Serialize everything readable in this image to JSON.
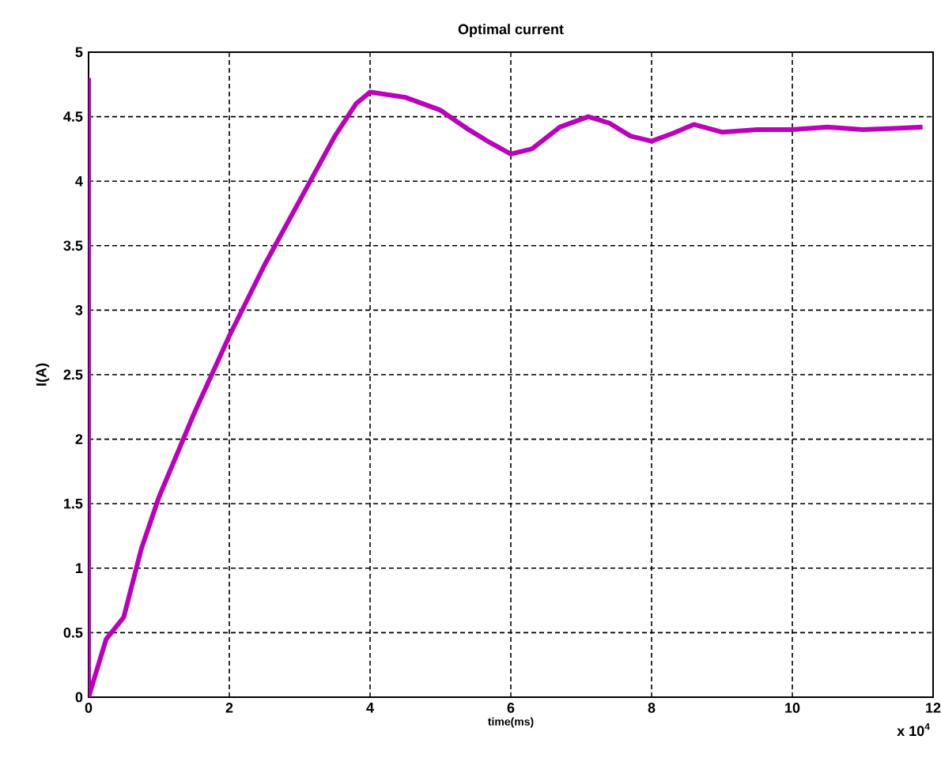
{
  "chart_data": {
    "type": "line",
    "title": "Optimal current",
    "xlabel": "time(ms)",
    "ylabel": "I(A)",
    "x": [
      0,
      0,
      0.25,
      0.5,
      0.75,
      1,
      1.5,
      2,
      2.5,
      3,
      3.5,
      3.8,
      4,
      4.5,
      5,
      5.4,
      5.7,
      6,
      6.3,
      6.7,
      7.1,
      7.4,
      7.7,
      8,
      8.3,
      8.6,
      9,
      9.5,
      10,
      10.5,
      11,
      11.5,
      11.85
    ],
    "series": [
      {
        "color": "#bb00bb",
        "values": [
          4.8,
          0,
          0.45,
          0.62,
          1.15,
          1.55,
          2.2,
          2.8,
          3.35,
          3.85,
          4.35,
          4.6,
          4.69,
          4.65,
          4.55,
          4.4,
          4.3,
          4.21,
          4.25,
          4.42,
          4.5,
          4.45,
          4.35,
          4.31,
          4.37,
          4.44,
          4.38,
          4.4,
          4.4,
          4.42,
          4.4,
          4.41,
          4.42
        ]
      }
    ],
    "xlim": [
      0,
      12
    ],
    "ylim": [
      0,
      5
    ],
    "xticks": [
      0,
      2,
      4,
      6,
      8,
      10,
      12
    ],
    "yticks": [
      0,
      0.5,
      1,
      1.5,
      2,
      2.5,
      3,
      3.5,
      4,
      4.5,
      5
    ],
    "annotations": [
      "x 10$^{4}$"
    ],
    "grid": true,
    "legend": false,
    "marker": "none",
    "line_style": "solid"
  }
}
